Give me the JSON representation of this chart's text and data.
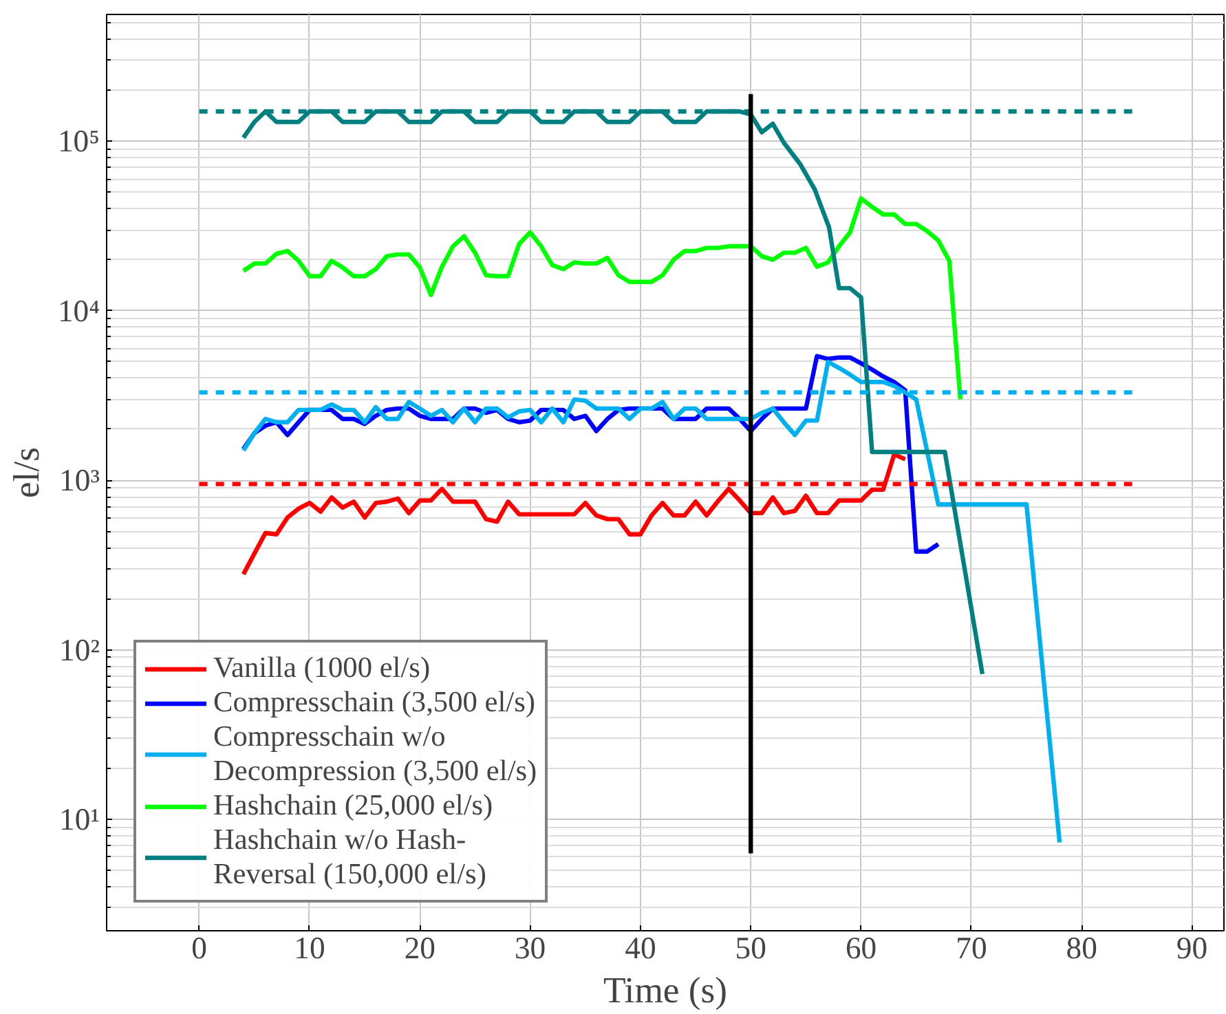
{
  "chart_data": {
    "type": "line",
    "xlabel": "Time (s)",
    "ylabel": "el/s",
    "log": "y",
    "grid": true,
    "legend": "bottom left",
    "marker": "none",
    "xlim": [
      -8.4,
      92.9
    ],
    "ylim": [
      2.2,
      560000
    ],
    "xticks": [
      0,
      10,
      20,
      30,
      40,
      50,
      60,
      70,
      80,
      90
    ],
    "yticks": [
      {
        "value": 10,
        "label": "10¹"
      },
      {
        "value": 100,
        "label": "10²"
      },
      {
        "value": 1000,
        "label": "10³"
      },
      {
        "value": 10000,
        "label": "10⁴"
      },
      {
        "value": 100000,
        "label": "10⁵"
      }
    ],
    "series": [
      {
        "name": "Vanilla (1000 el/s)",
        "color": "#ff0000",
        "line_style": "solid",
        "x": [
          4,
          5,
          6,
          7,
          8,
          9,
          10,
          11,
          12,
          13,
          14,
          15,
          16,
          17,
          18,
          19,
          20,
          21,
          22,
          23,
          24,
          25,
          26,
          27,
          28,
          29,
          30,
          31,
          32,
          33,
          34,
          35,
          36,
          37,
          38,
          39,
          40,
          41,
          42,
          43,
          44,
          45,
          46,
          47,
          48,
          49,
          50,
          51,
          52,
          53,
          54,
          55,
          56,
          57,
          58,
          59,
          60,
          61,
          62,
          63,
          64
        ],
        "values": [
          279,
          370,
          489,
          480,
          603,
          680,
          735,
          653,
          792,
          690,
          748,
          603,
          735,
          748,
          780,
          640,
          760,
          760,
          890,
          748,
          748,
          748,
          590,
          570,
          748,
          630,
          630,
          630,
          630,
          630,
          630,
          735,
          620,
          590,
          590,
          480,
          480,
          620,
          735,
          620,
          620,
          748,
          620,
          750,
          890,
          760,
          640,
          640,
          792,
          640,
          660,
          810,
          640,
          640,
          760,
          760,
          760,
          880,
          880,
          1420,
          1330
        ]
      },
      {
        "name": "Compresschain (3,500 el/s)",
        "color": "#0000ff",
        "line_style": "solid",
        "x": [
          4,
          5,
          6,
          7,
          8,
          9,
          10,
          11,
          12,
          13,
          14,
          15,
          16,
          17,
          18,
          19,
          20,
          21,
          22,
          23,
          24,
          25,
          26,
          27,
          28,
          29,
          30,
          31,
          32,
          33,
          34,
          35,
          36,
          37,
          38,
          39,
          40,
          41,
          42,
          43,
          44,
          45,
          46,
          47,
          48,
          49,
          50,
          51,
          52,
          53,
          54,
          55,
          56,
          57,
          58,
          59,
          60,
          61,
          62,
          63,
          64,
          65,
          66,
          67
        ],
        "values": [
          1530,
          1900,
          2100,
          2200,
          1850,
          2200,
          2600,
          2600,
          2600,
          2300,
          2300,
          2150,
          2400,
          2600,
          2650,
          2650,
          2400,
          2300,
          2300,
          2300,
          2650,
          2650,
          2500,
          2600,
          2300,
          2200,
          2250,
          2600,
          2600,
          2600,
          2300,
          2400,
          1950,
          2300,
          2600,
          2650,
          2650,
          2650,
          2650,
          2300,
          2300,
          2300,
          2650,
          2650,
          2650,
          2300,
          1950,
          2300,
          2650,
          2650,
          2650,
          2650,
          5400,
          5200,
          5300,
          5300,
          4900,
          4500,
          4100,
          3800,
          3400,
          380,
          380,
          420
        ]
      },
      {
        "name": "Compresschain w/o Decompression (3,500 el/s)",
        "color": "#00b0f0",
        "line_style": "solid",
        "x": [
          4,
          5,
          6,
          7,
          8,
          9,
          10,
          11,
          12,
          13,
          14,
          15,
          16,
          17,
          18,
          19,
          20,
          21,
          22,
          23,
          24,
          25,
          26,
          27,
          28,
          29,
          30,
          31,
          32,
          33,
          34,
          35,
          36,
          37,
          38,
          39,
          40,
          41,
          42,
          43,
          44,
          45,
          46,
          47,
          48,
          49,
          50,
          51,
          52,
          53,
          54,
          55,
          56,
          57,
          58,
          59,
          60,
          61,
          62,
          63,
          64,
          65,
          67,
          75,
          78
        ],
        "values": [
          1500,
          1900,
          2300,
          2200,
          2200,
          2600,
          2600,
          2600,
          2800,
          2600,
          2600,
          2200,
          2700,
          2300,
          2300,
          2900,
          2650,
          2400,
          2600,
          2200,
          2650,
          2200,
          2650,
          2650,
          2350,
          2550,
          2600,
          2200,
          2650,
          2200,
          3000,
          2950,
          2650,
          2650,
          2650,
          2300,
          2650,
          2650,
          2900,
          2300,
          2650,
          2650,
          2300,
          2300,
          2300,
          2300,
          2300,
          2500,
          2650,
          2200,
          1850,
          2250,
          2250,
          5000,
          4600,
          4200,
          3800,
          3800,
          3800,
          3600,
          3300,
          3000,
          720,
          720,
          7.3
        ]
      },
      {
        "name": "Hashchain (25,000 el/s)",
        "color": "#00ff00",
        "line_style": "solid",
        "x": [
          4,
          5,
          6,
          7,
          8,
          9,
          10,
          11,
          12,
          13,
          14,
          15,
          16,
          17,
          18,
          19,
          20,
          21,
          22,
          23,
          24,
          25,
          26,
          27,
          28,
          29,
          30,
          31,
          32,
          33,
          34,
          35,
          36,
          37,
          38,
          39,
          40,
          41,
          42,
          43,
          44,
          45,
          46,
          47,
          48,
          49,
          50,
          51,
          52,
          53,
          54,
          55,
          56,
          57,
          58,
          59,
          60,
          61,
          62,
          63,
          64,
          65,
          66,
          67,
          68,
          69
        ],
        "values": [
          17200,
          19000,
          19000,
          21700,
          22500,
          19700,
          16000,
          16000,
          19700,
          18000,
          16000,
          16000,
          17600,
          21000,
          21500,
          21500,
          18000,
          12400,
          18200,
          24000,
          27500,
          22000,
          16200,
          16000,
          16000,
          24800,
          29000,
          24000,
          18600,
          17600,
          19300,
          19000,
          19000,
          20500,
          16200,
          14800,
          14800,
          14800,
          16200,
          20000,
          22500,
          22500,
          23500,
          23500,
          24000,
          24000,
          24000,
          21000,
          20000,
          22000,
          22000,
          23500,
          18200,
          19300,
          24000,
          29000,
          46000,
          41000,
          37000,
          37000,
          32500,
          32500,
          29500,
          26000,
          19700,
          3000
        ]
      },
      {
        "name": "Hashchain w/o Hash-Reversal (150,000 el/s)",
        "color": "#008080",
        "line_style": "solid",
        "x": [
          4,
          5,
          6,
          7,
          8,
          9,
          10,
          11,
          12,
          13,
          14,
          15,
          16,
          17,
          18,
          19,
          20,
          21,
          22,
          23,
          24,
          25,
          26,
          27,
          28,
          29,
          30,
          31,
          32,
          33,
          34,
          35,
          36,
          37,
          38,
          39,
          40,
          41,
          42,
          43,
          44,
          45,
          46,
          47,
          48,
          49,
          50,
          51,
          52,
          53,
          54.5,
          55.8,
          57.1,
          58,
          59,
          60,
          61,
          67.6,
          71
        ],
        "values": [
          105000,
          130000,
          150000,
          130000,
          130000,
          130000,
          150000,
          150000,
          150000,
          130000,
          130000,
          130000,
          150000,
          150000,
          150000,
          130000,
          130000,
          130000,
          150000,
          150000,
          150000,
          130000,
          130000,
          130000,
          150000,
          150000,
          150000,
          130000,
          130000,
          130000,
          150000,
          150000,
          150000,
          130000,
          130000,
          130000,
          150000,
          150000,
          150000,
          130000,
          130000,
          130000,
          150000,
          150000,
          150000,
          150000,
          144000,
          113000,
          127000,
          98000,
          73000,
          52000,
          31000,
          13600,
          13600,
          12000,
          1470,
          1470,
          72
        ]
      },
      {
        "color": "#ff0000",
        "line_style": "dashed",
        "x": [
          0,
          85
        ],
        "values": [
          950,
          950
        ]
      },
      {
        "color": "#00b0f0",
        "line_style": "dashed",
        "x": [
          0,
          85
        ],
        "values": [
          3300,
          3300
        ]
      },
      {
        "color": "#008080",
        "line_style": "dashed",
        "x": [
          0,
          85
        ],
        "values": [
          150000,
          150000
        ]
      },
      {
        "color": "#000000",
        "line_style": "solid",
        "x": [
          50,
          50
        ],
        "values": [
          6.3,
          190000
        ]
      }
    ]
  }
}
